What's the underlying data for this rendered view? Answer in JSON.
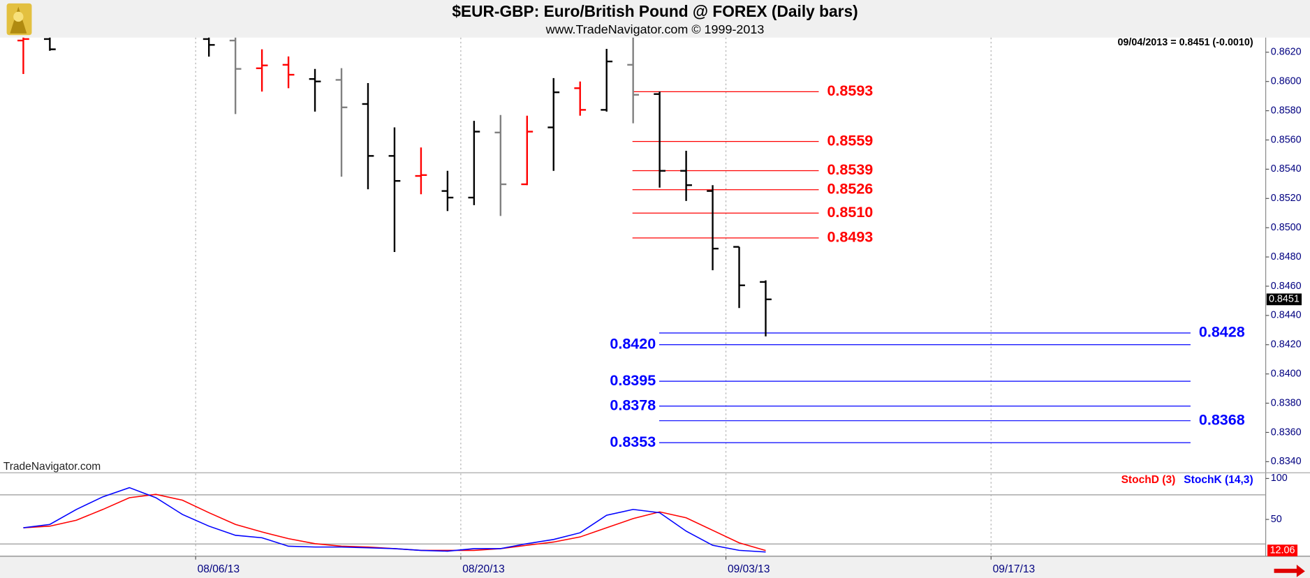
{
  "chart_data": [
    {
      "type": "ohlc",
      "title": "$EUR-GBP:  Euro/British Pound @ FOREX  (Daily bars)",
      "subtitle": "www.TradeNavigator.com © 1999-2013",
      "info": "09/04/2013 = 0.8451 (-0.0010)",
      "watermark": "TradeNavigator.com",
      "x": [
        0,
        1,
        7,
        8,
        9,
        10,
        11,
        12,
        13,
        14,
        15,
        16,
        17,
        18,
        19,
        20,
        21,
        22,
        23,
        24,
        25,
        26,
        27,
        28
      ],
      "open": [
        0.8628,
        0.8629,
        0.8629,
        0.8628,
        0.8609,
        0.86114,
        0.86017,
        0.86011,
        0.85846,
        0.85491,
        0.85354,
        0.85251,
        0.85206,
        0.85651,
        0.85297,
        0.85686,
        0.85954,
        0.85806,
        0.86114,
        0.85914,
        0.85389,
        0.85251,
        0.84869,
        0.84629
      ],
      "high": [
        0.8632,
        0.8632,
        0.8632,
        0.8632,
        0.8622,
        0.86171,
        0.86086,
        0.86091,
        0.85989,
        0.85686,
        0.85549,
        0.85389,
        0.85731,
        0.85771,
        0.85766,
        0.86023,
        0.86,
        0.86223,
        0.8632,
        0.85931,
        0.85526,
        0.85291,
        0.84869,
        0.8464
      ],
      "low": [
        0.86051,
        0.8621,
        0.8617,
        0.85777,
        0.85931,
        0.85954,
        0.85794,
        0.85349,
        0.85263,
        0.84834,
        0.85229,
        0.85114,
        0.85154,
        0.8508,
        0.85291,
        0.85389,
        0.85766,
        0.85794,
        0.85714,
        0.85274,
        0.85183,
        0.84709,
        0.84451,
        0.84257
      ],
      "close": [
        0.8629,
        0.8622,
        0.8625,
        0.86086,
        0.8611,
        0.86046,
        0.86,
        0.85823,
        0.85491,
        0.8532,
        0.8536,
        0.85206,
        0.85657,
        0.85297,
        0.85657,
        0.85926,
        0.85806,
        0.86137,
        0.85909,
        0.85389,
        0.85291,
        0.84857,
        0.84606,
        0.8451
      ],
      "colors": [
        "#ff0000",
        "#000000",
        "#000000",
        "#808080",
        "#ff0000",
        "#ff0000",
        "#000000",
        "#808080",
        "#000000",
        "#000000",
        "#ff0000",
        "#000000",
        "#000000",
        "#808080",
        "#ff0000",
        "#000000",
        "#ff0000",
        "#000000",
        "#808080",
        "#000000",
        "#000000",
        "#000000",
        "#000000",
        "#000000"
      ],
      "levels": [
        {
          "value": 0.8593,
          "label": "0.8593",
          "color": "#ff0000",
          "label_side": "right"
        },
        {
          "value": 0.8559,
          "label": "0.8559",
          "color": "#ff0000",
          "label_side": "right"
        },
        {
          "value": 0.8539,
          "label": "0.8539",
          "color": "#ff0000",
          "label_side": "right"
        },
        {
          "value": 0.8526,
          "label": "0.8526",
          "color": "#ff0000",
          "label_side": "right"
        },
        {
          "value": 0.851,
          "label": "0.8510",
          "color": "#ff0000",
          "label_side": "right"
        },
        {
          "value": 0.8493,
          "label": "0.8493",
          "color": "#ff0000",
          "label_side": "right"
        },
        {
          "value": 0.8428,
          "label": "0.8428",
          "color": "#0000ff",
          "label_side": "right"
        },
        {
          "value": 0.842,
          "label": "0.8420",
          "color": "#0000ff",
          "label_side": "left"
        },
        {
          "value": 0.8395,
          "label": "0.8395",
          "color": "#0000ff",
          "label_side": "left"
        },
        {
          "value": 0.8378,
          "label": "0.8378",
          "color": "#0000ff",
          "label_side": "left"
        },
        {
          "value": 0.8368,
          "label": "0.8368",
          "color": "#0000ff",
          "label_side": "right"
        },
        {
          "value": 0.8353,
          "label": "0.8353",
          "color": "#0000ff",
          "label_side": "left"
        }
      ],
      "xlim": [
        -0.88,
        46.86
      ],
      "xticks": [
        {
          "value": 6.5,
          "label": "08/06/13"
        },
        {
          "value": 16.5,
          "label": "08/20/13"
        },
        {
          "value": 26.5,
          "label": "09/03/13"
        },
        {
          "value": 36.5,
          "label": "09/17/13"
        }
      ],
      "ylim": [
        0.8333,
        0.863
      ],
      "yticks": [
        {
          "value": 0.834,
          "label": "0.8340"
        },
        {
          "value": 0.836,
          "label": "0.8360"
        },
        {
          "value": 0.838,
          "label": "0.8380"
        },
        {
          "value": 0.84,
          "label": "0.8400"
        },
        {
          "value": 0.842,
          "label": "0.8420"
        },
        {
          "value": 0.844,
          "label": "0.8440"
        },
        {
          "value": 0.846,
          "label": "0.8460"
        },
        {
          "value": 0.848,
          "label": "0.8480"
        },
        {
          "value": 0.85,
          "label": "0.8500"
        },
        {
          "value": 0.852,
          "label": "0.8520"
        },
        {
          "value": 0.854,
          "label": "0.8540"
        },
        {
          "value": 0.856,
          "label": "0.8560"
        },
        {
          "value": 0.858,
          "label": "0.8580"
        },
        {
          "value": 0.86,
          "label": "0.8600"
        },
        {
          "value": 0.862,
          "label": "0.8620"
        }
      ],
      "grid": true
    },
    {
      "type": "line",
      "x": [
        0,
        1,
        2,
        3,
        4,
        5,
        6,
        7,
        8,
        9,
        10,
        11,
        12,
        13,
        14,
        15,
        16,
        17,
        18,
        19,
        20,
        21,
        22,
        23,
        24,
        25,
        26,
        27,
        28
      ],
      "series": [
        {
          "name": "StochD (3)",
          "color": "#ff0000",
          "values": [
            39.8,
            41.8,
            49.0,
            62.2,
            76.5,
            80.6,
            73.5,
            58.2,
            43.9,
            34.7,
            26.5,
            20.4,
            17.3,
            16.3,
            14.3,
            12.2,
            12.2,
            12.2,
            14.3,
            18.4,
            22.4,
            28.6,
            39.8,
            51.0,
            59.2,
            52.0,
            36.7,
            21.4,
            12.06
          ]
        },
        {
          "name": "StochK (14,3)",
          "color": "#0000ff",
          "values": [
            39.8,
            43.9,
            62.2,
            77.6,
            88.8,
            76.5,
            56.1,
            41.8,
            30.6,
            27.6,
            17.3,
            16.3,
            16.3,
            15.3,
            14.3,
            12.2,
            11.2,
            14.3,
            14.3,
            20.4,
            25.5,
            33.7,
            55.1,
            62.2,
            58.2,
            35.7,
            18.4,
            12.2,
            10.2
          ]
        }
      ],
      "hlines": [
        80,
        20
      ],
      "ylim": [
        5,
        106
      ],
      "yticks": [
        50,
        100
      ]
    }
  ]
}
